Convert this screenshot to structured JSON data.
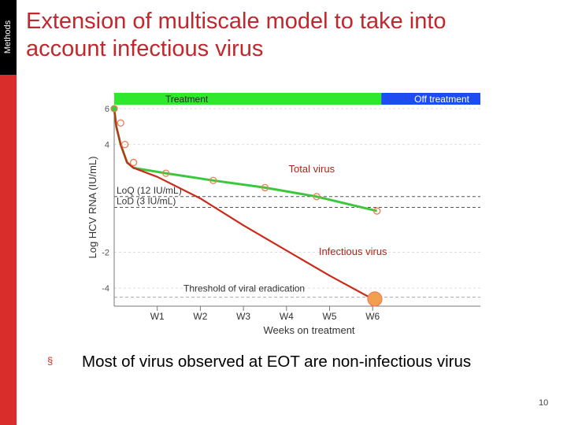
{
  "sidebar": {
    "label": "Methods"
  },
  "slide": {
    "title": "Extension of multiscale model to take into account infectious virus",
    "bullet_symbol": "§",
    "bullet": "Most of virus observed at EOT are non-infectious virus",
    "page_number": "10"
  },
  "colors": {
    "accent": "#d92d2b",
    "title": "#c0282d",
    "treatment_bar": "#2ee82e",
    "off_treatment_bar": "#1e4cf0",
    "total_virus": "#3cc83c",
    "infectious_virus": "#cc2a1a",
    "observed_points": "#f07a55"
  },
  "chart_data": {
    "type": "line",
    "xlabel": "Weeks on treatment",
    "ylabel": "Log HCV RNA (IU/mL)",
    "xlim": [
      0,
      8.5
    ],
    "ylim": [
      -5,
      6
    ],
    "x_ticks": [
      {
        "value": 1,
        "label": "W1"
      },
      {
        "value": 2,
        "label": "W2"
      },
      {
        "value": 3,
        "label": "W3"
      },
      {
        "value": 4,
        "label": "W4"
      },
      {
        "value": 5,
        "label": "W5"
      },
      {
        "value": 6,
        "label": "W6"
      }
    ],
    "y_ticks": [
      {
        "value": 6,
        "label": "6"
      },
      {
        "value": 4,
        "label": "4"
      },
      {
        "value": -2,
        "label": "-2"
      },
      {
        "value": -4,
        "label": "-4"
      }
    ],
    "phases": [
      {
        "label": "Treatment",
        "start": 0,
        "end": 6.2
      },
      {
        "label": "Off treatment",
        "start": 6.2,
        "end": 8.5
      }
    ],
    "reference_lines": [
      {
        "label": "LoQ (12 IU/mL)",
        "y": 1.1
      },
      {
        "label": "LoD (3 IU/mL)",
        "y": 0.5
      },
      {
        "label": "Threshold of viral eradication",
        "y": -4.5
      }
    ],
    "series": [
      {
        "name": "Total virus",
        "x": [
          0,
          0.05,
          0.15,
          0.3,
          0.45,
          1.2,
          2.3,
          3.5,
          4.7,
          6.1
        ],
        "y": [
          6,
          5,
          4,
          3,
          2.7,
          2.4,
          2.0,
          1.6,
          1.1,
          0.3
        ]
      },
      {
        "name": "Infectious virus",
        "x": [
          0,
          0.05,
          0.15,
          0.3,
          0.45,
          1.0,
          2.0,
          3.0,
          4.0,
          5.0,
          6.0
        ],
        "y": [
          6,
          5,
          4,
          3,
          2.7,
          2.2,
          1.0,
          -0.5,
          -1.9,
          -3.3,
          -4.6
        ]
      }
    ],
    "observed_points": {
      "x": [
        0,
        0.15,
        0.25,
        0.45,
        1.2,
        2.3,
        3.5,
        4.7,
        6.1
      ],
      "y": [
        6,
        5.2,
        4,
        3,
        2.4,
        2.0,
        1.6,
        1.1,
        0.3
      ]
    },
    "eot_point": {
      "x": 6.05,
      "y": -4.6
    }
  }
}
